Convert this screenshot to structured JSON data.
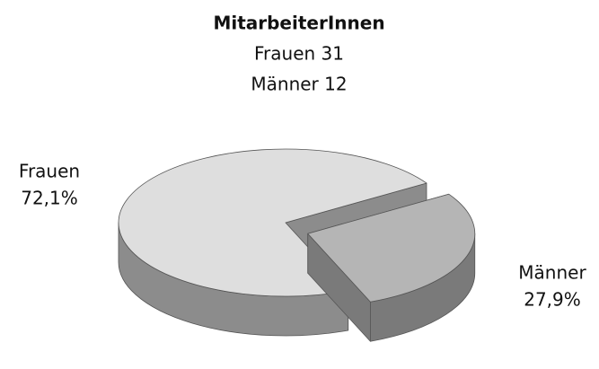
{
  "chart_data": {
    "type": "pie",
    "title": "MitarbeiterInnen",
    "subtitle": [
      "Frauen 31",
      "Männer 12"
    ],
    "categories": [
      "Frauen",
      "Männer"
    ],
    "values": [
      72.1,
      27.9
    ],
    "value_labels": [
      "72,1%",
      "27,9%"
    ],
    "colors": [
      "#dedede",
      "#b5b5b5"
    ],
    "explode": [
      false,
      true
    ]
  }
}
